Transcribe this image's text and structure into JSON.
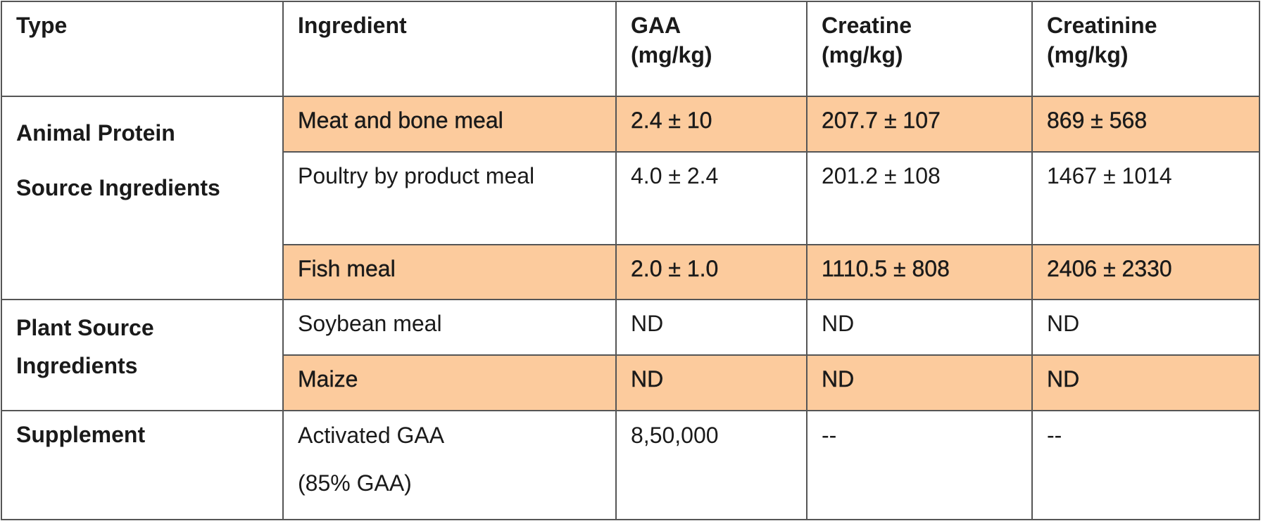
{
  "table": {
    "header": [
      [
        "Type"
      ],
      [
        "Ingredient"
      ],
      [
        "GAA",
        "(mg/kg)"
      ],
      [
        "Creatine",
        "(mg/kg)"
      ],
      [
        "Creatinine",
        "(mg/kg)"
      ]
    ],
    "highlight_color": "#fccb9d",
    "groups": [
      {
        "type": [
          "Animal Protein",
          "Source Ingredients"
        ],
        "rows": [
          {
            "ingredient": [
              "Meat and bone meal"
            ],
            "values": [
              "2.4 ± 10",
              "207.7 ± 107",
              "869 ± 568"
            ],
            "highlight": true
          },
          {
            "ingredient": [
              "Poultry by product meal"
            ],
            "values": [
              "4.0 ± 2.4",
              "201.2 ± 108",
              "1467 ± 1014"
            ],
            "highlight": false
          },
          {
            "ingredient": [
              "Fish meal"
            ],
            "values": [
              "2.0 ± 1.0",
              "1110.5 ± 808",
              "2406 ± 2330"
            ],
            "highlight": true
          }
        ]
      },
      {
        "type": [
          "Plant Source",
          "Ingredients"
        ],
        "rows": [
          {
            "ingredient": [
              "Soybean meal"
            ],
            "values": [
              "ND",
              "ND",
              "ND"
            ],
            "highlight": false
          },
          {
            "ingredient": [
              "Maize"
            ],
            "values": [
              "ND",
              "ND",
              "ND"
            ],
            "highlight": true
          }
        ]
      },
      {
        "type": [
          "Supplement"
        ],
        "rows": [
          {
            "ingredient": [
              "Activated GAA",
              "(85% GAA)"
            ],
            "values": [
              "8,50,000",
              "--",
              "--"
            ],
            "highlight": false
          }
        ]
      }
    ]
  }
}
